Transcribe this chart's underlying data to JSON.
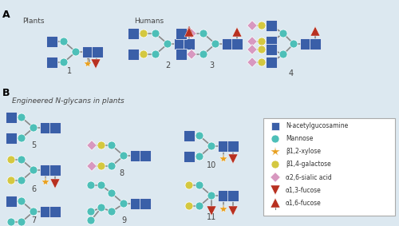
{
  "bg_color": "#dce8f0",
  "title_A": "A",
  "title_B": "B",
  "label_plants": "Plants",
  "label_humans": "Humans",
  "label_engineered": "Engineered N-glycans in plants",
  "colors": {
    "GlcNAc": "#3a5fa8",
    "Man": "#4dbfb8",
    "Xyl": "#e8a020",
    "Gal": "#d4c840",
    "Sia": "#d898c0",
    "Fuc13": "#b83020",
    "Fuc16": "#b83020"
  },
  "legend_items": [
    {
      "label": "N-acetylgucosamine",
      "shape": "square",
      "color": "#3a5fa8"
    },
    {
      "label": "Mannose",
      "shape": "circle",
      "color": "#4dbfb8"
    },
    {
      "label": "β1,2-xylose",
      "shape": "star",
      "color": "#e8a020"
    },
    {
      "label": "β1,4-galactose",
      "shape": "circle",
      "color": "#d4c840"
    },
    {
      "label": "α2,6-sialic acid",
      "shape": "diamond",
      "color": "#d898c0"
    },
    {
      "label": "α1,3-fucose",
      "shape": "triangle_down",
      "color": "#b83020"
    },
    {
      "label": "α1,6-fucose",
      "shape": "triangle_up",
      "color": "#b83020"
    }
  ]
}
